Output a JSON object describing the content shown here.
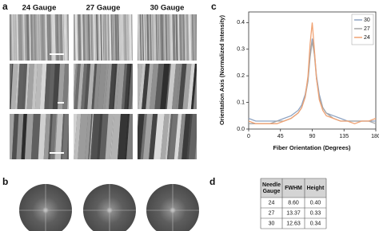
{
  "panel_a": {
    "label": "a",
    "columns": [
      "24 Gauge",
      "27 Gauge",
      "30 Gauge"
    ]
  },
  "panel_b": {
    "label": "b"
  },
  "panel_d": {
    "label": "d",
    "table": {
      "header": [
        "Needle Gauge",
        "FWHM",
        "Height"
      ],
      "rows": [
        [
          "24",
          "8.60",
          "0.40"
        ],
        [
          "27",
          "13.37",
          "0.33"
        ],
        [
          "30",
          "12.63",
          "0.34"
        ]
      ]
    }
  },
  "chart_data": {
    "type": "line",
    "panel_label": "c",
    "x_label": "Fiber Orientation (Degrees)",
    "y_label": "Orientation Axis (Normalized Intensity)",
    "x": [
      0,
      10,
      20,
      30,
      40,
      50,
      60,
      70,
      75,
      80,
      84,
      87,
      90,
      93,
      96,
      100,
      105,
      110,
      120,
      130,
      140,
      150,
      160,
      170,
      180
    ],
    "series": [
      {
        "name": "30",
        "color": "#8ea3c2",
        "values": [
          0.04,
          0.03,
          0.03,
          0.03,
          0.03,
          0.04,
          0.05,
          0.07,
          0.09,
          0.13,
          0.19,
          0.28,
          0.34,
          0.29,
          0.2,
          0.13,
          0.08,
          0.06,
          0.05,
          0.04,
          0.03,
          0.03,
          0.03,
          0.03,
          0.03
        ]
      },
      {
        "name": "27",
        "color": "#a6a6a6",
        "values": [
          0.02,
          0.02,
          0.02,
          0.02,
          0.03,
          0.03,
          0.04,
          0.06,
          0.08,
          0.12,
          0.18,
          0.27,
          0.33,
          0.28,
          0.19,
          0.12,
          0.08,
          0.06,
          0.04,
          0.03,
          0.03,
          0.03,
          0.03,
          0.03,
          0.02
        ]
      },
      {
        "name": "24",
        "color": "#f0a273",
        "values": [
          0.03,
          0.02,
          0.02,
          0.02,
          0.02,
          0.03,
          0.04,
          0.06,
          0.08,
          0.12,
          0.2,
          0.32,
          0.4,
          0.3,
          0.19,
          0.11,
          0.07,
          0.05,
          0.04,
          0.03,
          0.03,
          0.02,
          0.03,
          0.03,
          0.04
        ]
      }
    ],
    "xlim": [
      0,
      180
    ],
    "xticks": [
      0,
      45,
      90,
      135,
      180
    ],
    "ylim": [
      0,
      0.44
    ],
    "yticks": [
      {
        "value": 0,
        "label": "0.0"
      },
      {
        "value": 0.1,
        "label": "0.1"
      },
      {
        "value": 0.2,
        "label": "0.2"
      },
      {
        "value": 0.3,
        "label": "0.3"
      },
      {
        "value": 0.4,
        "label": "0.4"
      }
    ],
    "legend": "upper right"
  }
}
